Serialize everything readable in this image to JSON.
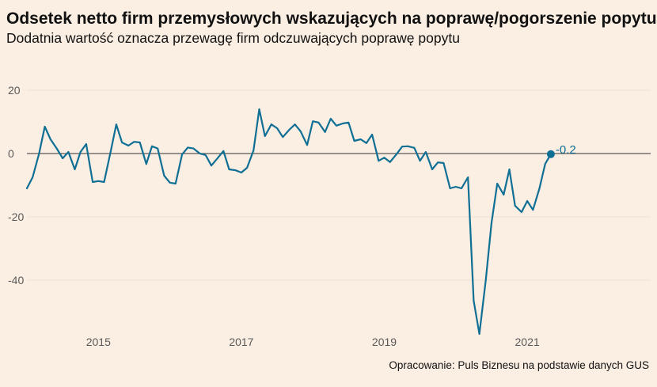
{
  "header": {
    "title": "Odsetek netto firm przemysłowych wskazujących na poprawę/pogorszenie popytu",
    "subtitle": "Dodatnia wartość oznacza przewagę firm odczuwających poprawę popytu"
  },
  "footer": {
    "source": "Opracowanie: Puls Biznesu na podstawie danych GUS"
  },
  "colors": {
    "background": "#FBEEE2",
    "series": "#0f6f95",
    "zero_line": "#333333",
    "grid": "#efe0d2"
  },
  "chart_data": {
    "type": "line",
    "title": "Odsetek netto firm przemysłowych wskazujących na poprawę/pogorszenie popytu",
    "subtitle": "Dodatnia wartość oznacza przewagę firm odczuwających poprawę popytu",
    "xlabel": "",
    "ylabel": "",
    "x_range": [
      2014.0,
      2022.6
    ],
    "ylim": [
      -58,
      24
    ],
    "yticks": [
      20,
      0,
      -20,
      -40
    ],
    "ytick_labels": [
      "20",
      "0",
      "-20",
      "-40"
    ],
    "xticks": [
      2015,
      2017,
      2019,
      2021
    ],
    "xtick_labels": [
      "2015",
      "2017",
      "2019",
      "2021"
    ],
    "grid": false,
    "zero_line": true,
    "end_label": "-0.2",
    "series": [
      {
        "values": [
          {
            "x": 2014.0,
            "y": -11
          },
          {
            "x": 2014.08,
            "y": -7.5
          },
          {
            "x": 2014.17,
            "y": 0
          },
          {
            "x": 2014.25,
            "y": 8.5
          },
          {
            "x": 2014.33,
            "y": 4.5
          },
          {
            "x": 2014.42,
            "y": 1.5
          },
          {
            "x": 2014.5,
            "y": -1.5
          },
          {
            "x": 2014.58,
            "y": 0.5
          },
          {
            "x": 2014.67,
            "y": -5
          },
          {
            "x": 2014.75,
            "y": 0.5
          },
          {
            "x": 2014.83,
            "y": 3
          },
          {
            "x": 2014.92,
            "y": -9
          },
          {
            "x": 2015.0,
            "y": -8.7
          },
          {
            "x": 2015.08,
            "y": -9
          },
          {
            "x": 2015.17,
            "y": 0.5
          },
          {
            "x": 2015.25,
            "y": 9.2
          },
          {
            "x": 2015.33,
            "y": 3.5
          },
          {
            "x": 2015.42,
            "y": 2.5
          },
          {
            "x": 2015.5,
            "y": 3.7
          },
          {
            "x": 2015.58,
            "y": 3.5
          },
          {
            "x": 2015.67,
            "y": -3.3
          },
          {
            "x": 2015.75,
            "y": 2.3
          },
          {
            "x": 2015.83,
            "y": 1.6
          },
          {
            "x": 2015.92,
            "y": -7
          },
          {
            "x": 2016.0,
            "y": -9.2
          },
          {
            "x": 2016.08,
            "y": -9.5
          },
          {
            "x": 2016.17,
            "y": -0.3
          },
          {
            "x": 2016.25,
            "y": 1.9
          },
          {
            "x": 2016.33,
            "y": 1.6
          },
          {
            "x": 2016.42,
            "y": 0
          },
          {
            "x": 2016.5,
            "y": -0.5
          },
          {
            "x": 2016.58,
            "y": -3.8
          },
          {
            "x": 2016.67,
            "y": -1.4
          },
          {
            "x": 2016.75,
            "y": 0.8
          },
          {
            "x": 2016.83,
            "y": -5
          },
          {
            "x": 2016.92,
            "y": -5.3
          },
          {
            "x": 2017.0,
            "y": -6
          },
          {
            "x": 2017.08,
            "y": -4.5
          },
          {
            "x": 2017.17,
            "y": 1
          },
          {
            "x": 2017.25,
            "y": 14
          },
          {
            "x": 2017.33,
            "y": 5.5
          },
          {
            "x": 2017.42,
            "y": 9.2
          },
          {
            "x": 2017.5,
            "y": 8
          },
          {
            "x": 2017.58,
            "y": 5.2
          },
          {
            "x": 2017.67,
            "y": 7.5
          },
          {
            "x": 2017.75,
            "y": 9.2
          },
          {
            "x": 2017.83,
            "y": 7
          },
          {
            "x": 2017.92,
            "y": 2.7
          },
          {
            "x": 2018.0,
            "y": 10.2
          },
          {
            "x": 2018.08,
            "y": 9.8
          },
          {
            "x": 2018.17,
            "y": 6.8
          },
          {
            "x": 2018.25,
            "y": 11
          },
          {
            "x": 2018.33,
            "y": 8.8
          },
          {
            "x": 2018.42,
            "y": 9.5
          },
          {
            "x": 2018.5,
            "y": 9.8
          },
          {
            "x": 2018.58,
            "y": 4
          },
          {
            "x": 2018.67,
            "y": 4.5
          },
          {
            "x": 2018.75,
            "y": 3.3
          },
          {
            "x": 2018.83,
            "y": 6
          },
          {
            "x": 2018.92,
            "y": -2.3
          },
          {
            "x": 2019.0,
            "y": -1.3
          },
          {
            "x": 2019.08,
            "y": -2.7
          },
          {
            "x": 2019.17,
            "y": -0.2
          },
          {
            "x": 2019.25,
            "y": 2.2
          },
          {
            "x": 2019.33,
            "y": 2.3
          },
          {
            "x": 2019.42,
            "y": 1.8
          },
          {
            "x": 2019.5,
            "y": -2.3
          },
          {
            "x": 2019.58,
            "y": 0.5
          },
          {
            "x": 2019.67,
            "y": -5
          },
          {
            "x": 2019.75,
            "y": -2.8
          },
          {
            "x": 2019.83,
            "y": -3
          },
          {
            "x": 2019.92,
            "y": -11
          },
          {
            "x": 2020.0,
            "y": -10.5
          },
          {
            "x": 2020.08,
            "y": -11
          },
          {
            "x": 2020.17,
            "y": -7.5
          },
          {
            "x": 2020.25,
            "y": -46.5
          },
          {
            "x": 2020.33,
            "y": -57
          },
          {
            "x": 2020.42,
            "y": -40
          },
          {
            "x": 2020.5,
            "y": -22
          },
          {
            "x": 2020.58,
            "y": -9.5
          },
          {
            "x": 2020.67,
            "y": -13
          },
          {
            "x": 2020.75,
            "y": -5
          },
          {
            "x": 2020.83,
            "y": -16.5
          },
          {
            "x": 2020.92,
            "y": -18.5
          },
          {
            "x": 2021.0,
            "y": -15
          },
          {
            "x": 2021.08,
            "y": -17.8
          },
          {
            "x": 2021.17,
            "y": -11
          },
          {
            "x": 2021.25,
            "y": -3.3
          },
          {
            "x": 2021.33,
            "y": -0.2
          }
        ]
      }
    ]
  }
}
